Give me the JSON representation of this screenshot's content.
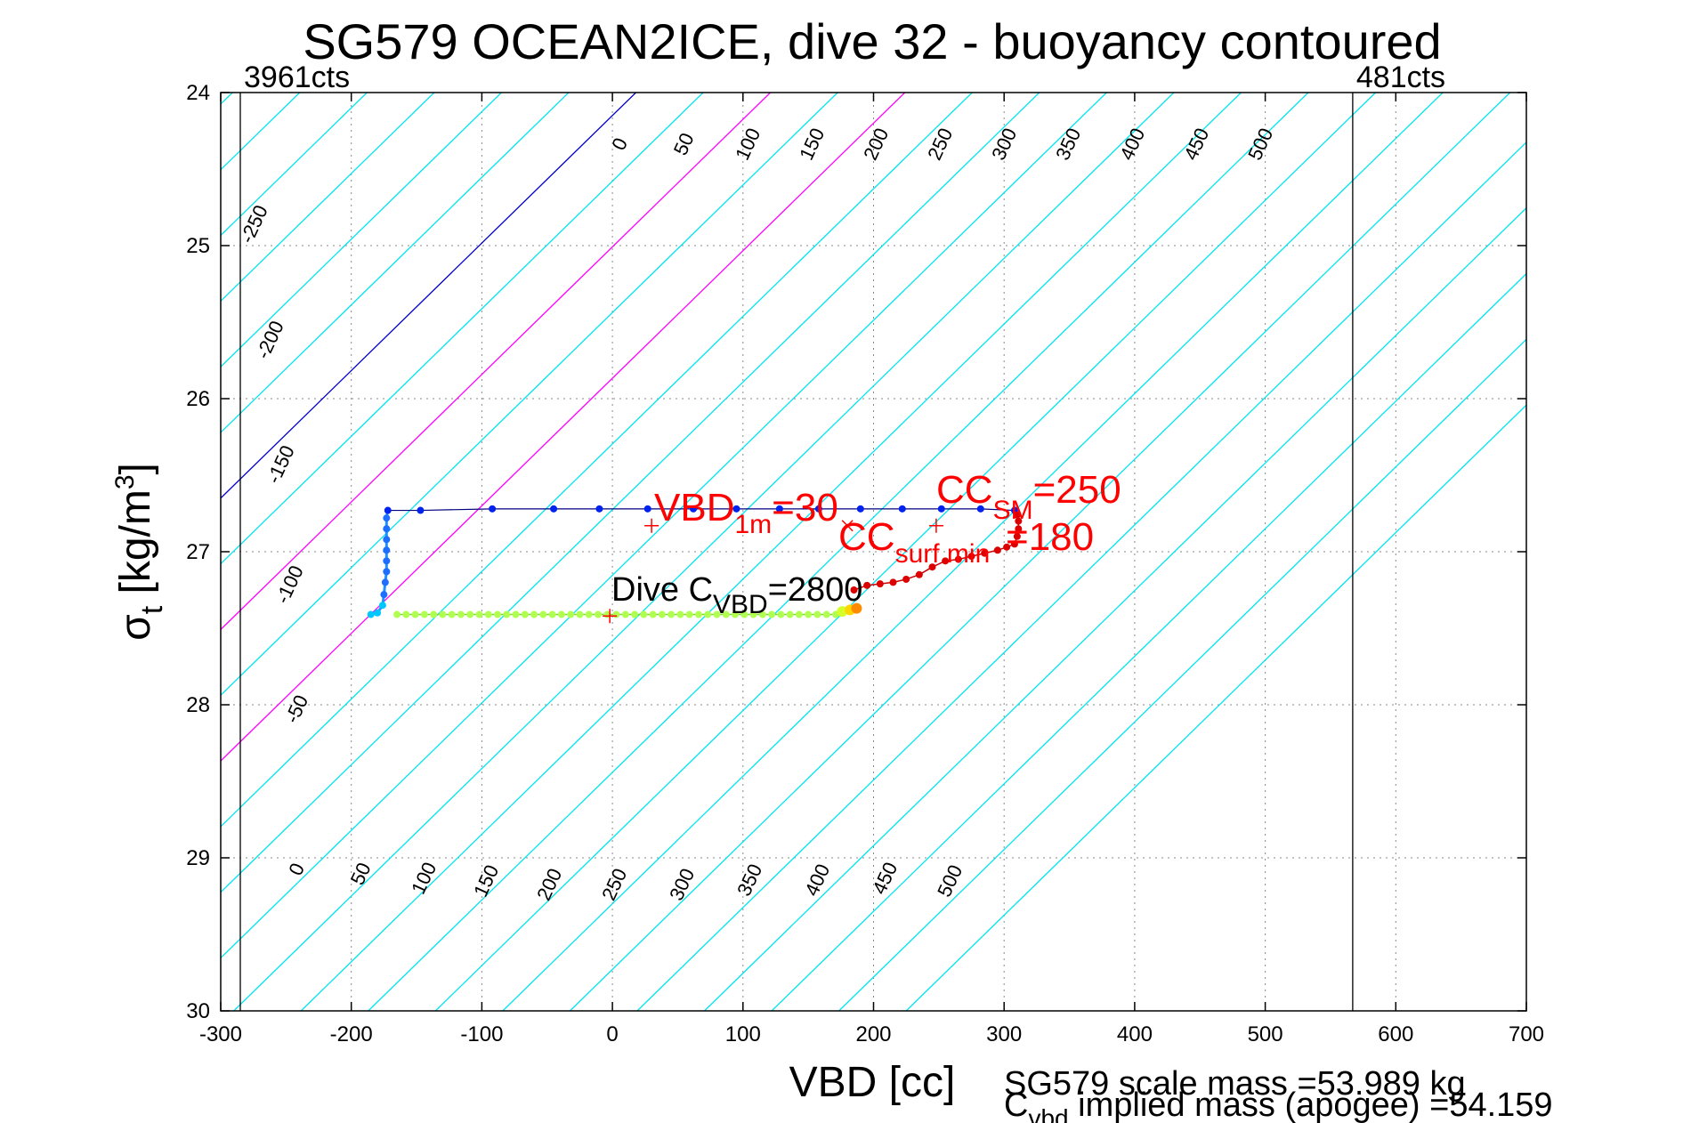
{
  "chart_data": {
    "type": "scatter",
    "title": "SG579 OCEAN2ICE, dive 32 - buoyancy contoured",
    "xlabel": "VBD [cc]",
    "ylabel_main": "σ",
    "ylabel_sub": "t",
    "ylabel_unit_pre": " [kg/m",
    "ylabel_unit_sup": "3",
    "ylabel_unit_post": "]",
    "xlim": [
      -300,
      700
    ],
    "ylim": [
      24,
      30
    ],
    "y_reversed": true,
    "grid": "dotted",
    "xticks": [
      -300,
      -200,
      -100,
      0,
      100,
      200,
      300,
      400,
      500,
      600,
      700
    ],
    "yticks": [
      24,
      25,
      26,
      27,
      28,
      29,
      30
    ],
    "count_lines": [
      {
        "label": "3961cts",
        "x": -285
      },
      {
        "label": "481cts",
        "x": 567
      }
    ],
    "contour_labels": {
      "top": [
        "0",
        "50",
        "100",
        "150",
        "200",
        "250",
        "300",
        "350",
        "400",
        "450",
        "500"
      ],
      "left": [
        "-250",
        "-200",
        "-150",
        "-100",
        "-50"
      ],
      "bottom": [
        "0",
        "50",
        "100",
        "150",
        "200",
        "250",
        "300",
        "350",
        "400",
        "450",
        "500"
      ]
    },
    "contour_colors": {
      "zero": "#0000cc",
      "highlight": "#ff00ff",
      "other": "#00e5ee"
    },
    "dive_track": [
      {
        "x": -172,
        "y": 26.73
      },
      {
        "x": -147,
        "y": 26.73
      },
      {
        "x": -92,
        "y": 26.72
      },
      {
        "x": -45,
        "y": 26.72
      },
      {
        "x": -10,
        "y": 26.72
      },
      {
        "x": 27,
        "y": 26.72
      },
      {
        "x": 62,
        "y": 26.72
      },
      {
        "x": 95,
        "y": 26.72
      },
      {
        "x": 128,
        "y": 26.72
      },
      {
        "x": 158,
        "y": 26.72
      },
      {
        "x": 190,
        "y": 26.72
      },
      {
        "x": 222,
        "y": 26.72
      },
      {
        "x": 252,
        "y": 26.72
      },
      {
        "x": 282,
        "y": 26.72
      },
      {
        "x": 308,
        "y": 26.73
      }
    ],
    "dive_descent_points": [
      {
        "x": -173,
        "y": 26.78
      },
      {
        "x": -173,
        "y": 26.85
      },
      {
        "x": -173,
        "y": 26.92
      },
      {
        "x": -173,
        "y": 26.99
      },
      {
        "x": -173,
        "y": 27.06
      },
      {
        "x": -173,
        "y": 27.13
      },
      {
        "x": -174,
        "y": 27.2
      },
      {
        "x": -175,
        "y": 27.28
      },
      {
        "x": -176,
        "y": 27.35
      },
      {
        "x": -180,
        "y": 27.4
      },
      {
        "x": -185,
        "y": 27.41
      }
    ],
    "climb_track": {
      "x_start": -165,
      "x_end": 172,
      "step": 7,
      "y": 27.41,
      "color": "#b0ff50"
    },
    "climb_end_points": [
      {
        "x": 176,
        "y": 27.39,
        "color": "#d4ff2a"
      },
      {
        "x": 182,
        "y": 27.38,
        "color": "#ffd700"
      },
      {
        "x": 187,
        "y": 27.37,
        "color": "#ff8c00"
      }
    ],
    "red_track": [
      {
        "x": 185,
        "y": 27.25
      },
      {
        "x": 195,
        "y": 27.22
      },
      {
        "x": 205,
        "y": 27.21
      },
      {
        "x": 215,
        "y": 27.2
      },
      {
        "x": 225,
        "y": 27.18
      },
      {
        "x": 235,
        "y": 27.15
      },
      {
        "x": 245,
        "y": 27.1
      },
      {
        "x": 255,
        "y": 27.06
      },
      {
        "x": 265,
        "y": 27.05
      },
      {
        "x": 275,
        "y": 27.03
      },
      {
        "x": 285,
        "y": 27.01
      },
      {
        "x": 295,
        "y": 26.99
      },
      {
        "x": 302,
        "y": 26.97
      },
      {
        "x": 308,
        "y": 26.95
      },
      {
        "x": 310,
        "y": 26.9
      },
      {
        "x": 311,
        "y": 26.85
      },
      {
        "x": 311,
        "y": 26.8
      },
      {
        "x": 310,
        "y": 26.76
      }
    ],
    "markers": [
      {
        "type": "plus",
        "x": 30,
        "y": 26.83,
        "color": "#ff0000"
      },
      {
        "type": "x",
        "x": 180,
        "y": 26.83,
        "color": "#ff0000"
      },
      {
        "type": "plus",
        "x": 248,
        "y": 26.83,
        "color": "#ff0000"
      },
      {
        "type": "plus",
        "x": -2,
        "y": 27.42,
        "color": "#ff0000"
      }
    ],
    "annotations": {
      "vbd1m": {
        "main": "VBD",
        "sub": "1m",
        "post": "=30"
      },
      "cc_sm": {
        "main": "CC",
        "sub": "SM",
        "post": "=250"
      },
      "cc_sm_line2": {
        "text": "=180"
      },
      "cc_surf": {
        "main": "CC",
        "sub": "surf min"
      },
      "dive_cvbd": {
        "main": "Dive C",
        "sub": "VBD",
        "post": "=2800"
      }
    },
    "footer": {
      "line1": "SG579 scale mass =53.989 kg",
      "line2_main": "C",
      "line2_sub": "vbd",
      "line2_post": " implied mass (apogee) =54.159"
    }
  }
}
